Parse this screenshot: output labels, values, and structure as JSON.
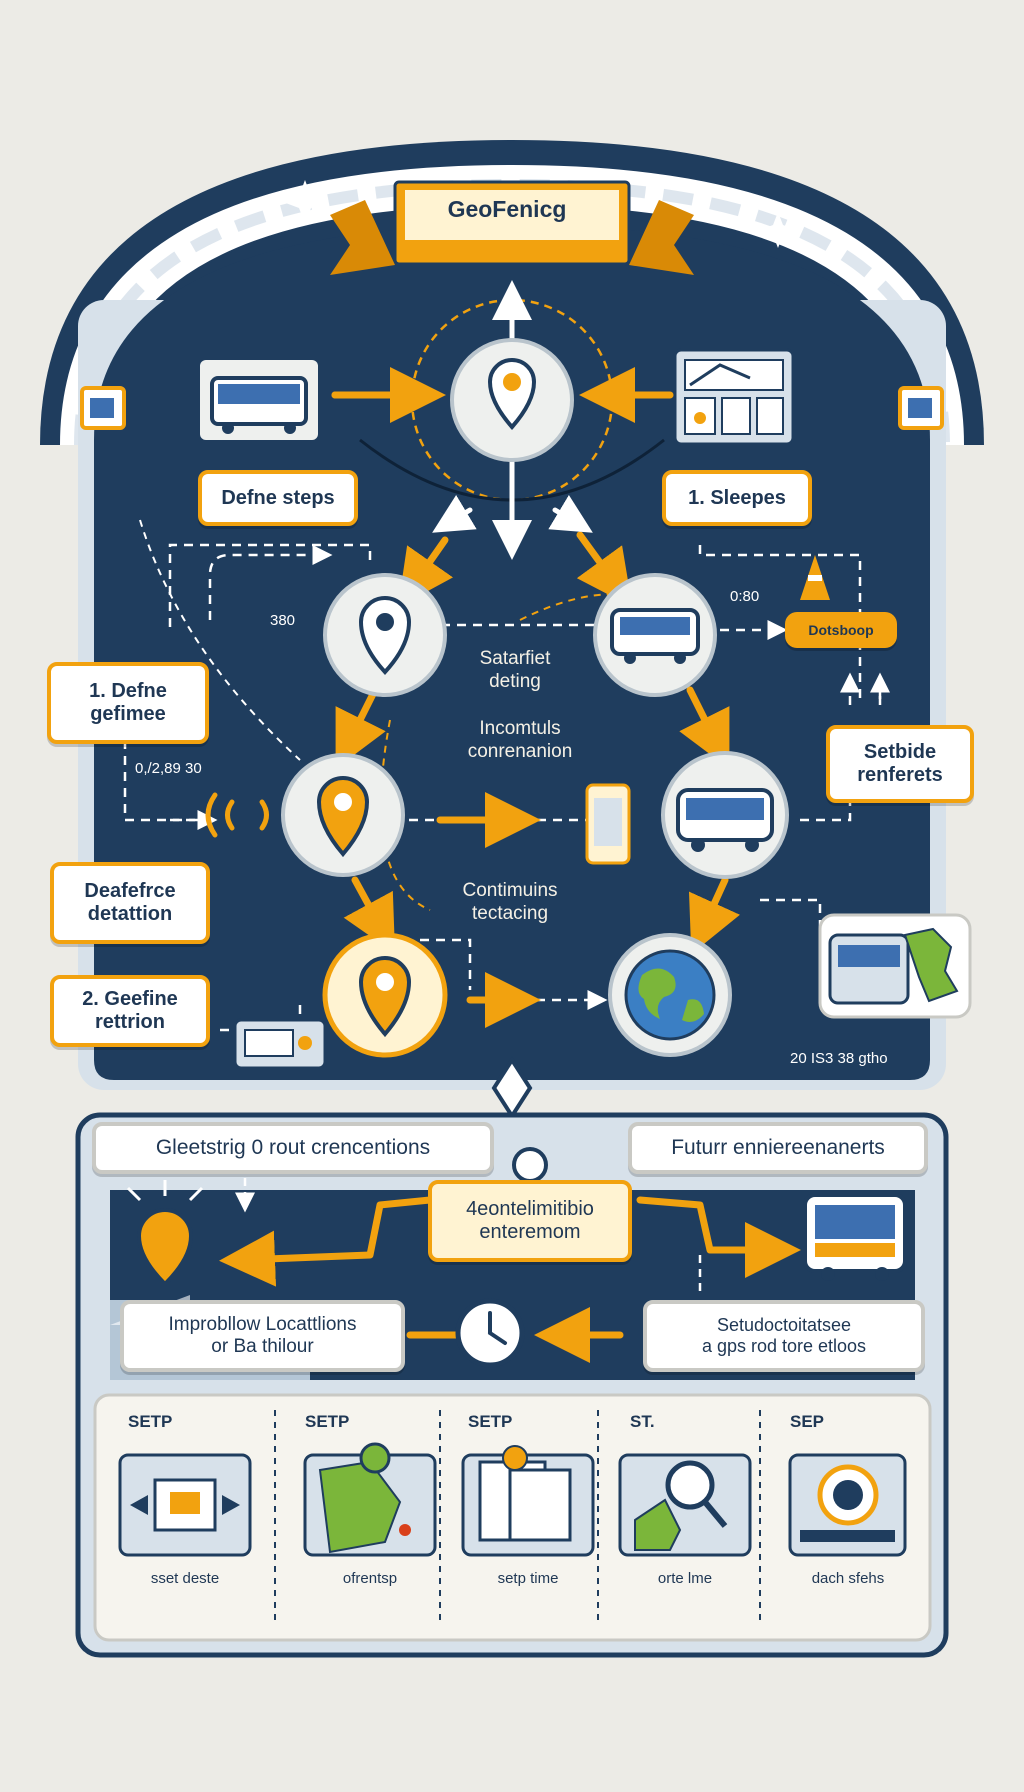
{
  "banner": {
    "title": "GeoFenicg"
  },
  "top_labels": {
    "define_steps": "Defne steps",
    "steeps": "1. Sleepes"
  },
  "left_labels": {
    "define_geofence": "1. Defne\ngefimee",
    "detection": "Deafefrce\ndetattion",
    "retention": "2. Geefine\nrettrion"
  },
  "right_labels": {
    "reminders": "Setbide\nrenferets",
    "pill": "Dotsboop"
  },
  "center_texts": {
    "t1": "Satarfiet\ndeting",
    "t2": "Incomtuls\nconrenanion",
    "t3": "Contimuins\ntectacing"
  },
  "small_texts": {
    "s1": "380",
    "s2": "0,/2,89 30",
    "s3": "0:80",
    "s4": "20 IS3 38 gtho"
  },
  "lower_labels": {
    "gleetstrig": "Gleetstrig 0 rout crencentions",
    "future": "Futurr enniereenanerts",
    "center": "4eontelimitibio\nenteremom",
    "improbilow": "Improbllow Locattlions\nor Ba thilour",
    "setudo": "Setudoctoitatsee\na gps rod tore etloos"
  },
  "steps": [
    {
      "title": "SETP",
      "caption": "sset deste"
    },
    {
      "title": "SETP",
      "caption": "ofrentsp"
    },
    {
      "title": "SETP",
      "caption": "setp time"
    },
    {
      "title": "ST.",
      "caption": "orte lme"
    },
    {
      "title": "SEP",
      "caption": "dach sfehs"
    }
  ],
  "colors": {
    "navy": "#1f3d5e",
    "orange": "#f2a20f",
    "light_blue": "#d7e1ea",
    "white": "#ffffff"
  }
}
